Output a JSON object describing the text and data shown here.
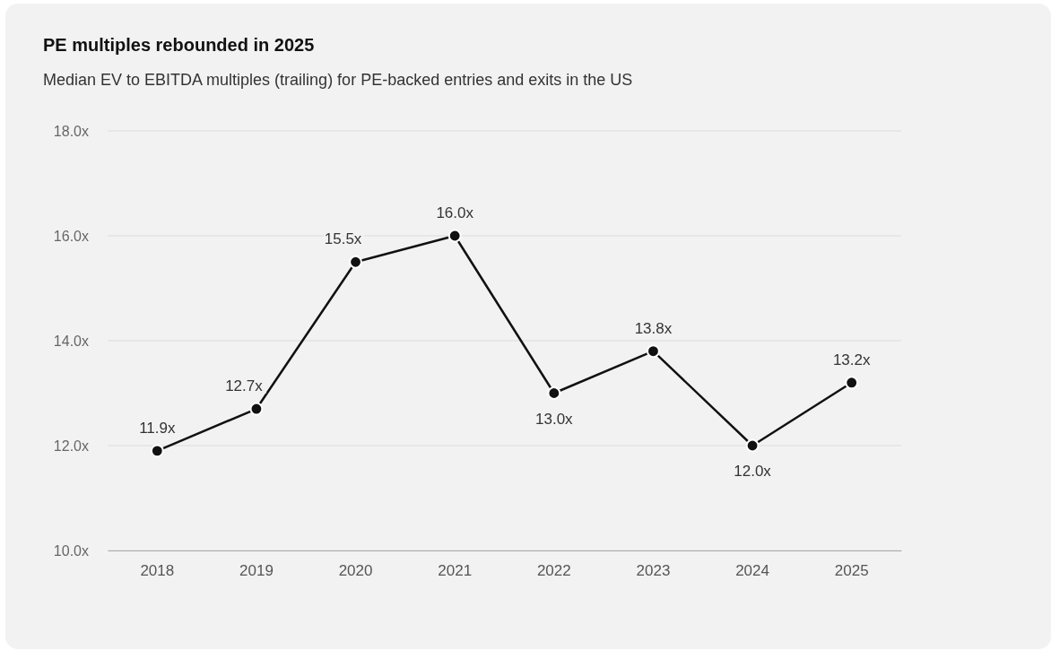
{
  "chart_data": {
    "type": "line",
    "title": "PE multiples rebounded in 2025",
    "subtitle": "Median EV to EBITDA multiples (trailing) for PE-backed entries and exits in the US",
    "categories": [
      "2018",
      "2019",
      "2020",
      "2021",
      "2022",
      "2023",
      "2024",
      "2025"
    ],
    "series": [
      {
        "color": "#111111",
        "values": [
          11.9,
          12.7,
          15.5,
          16.0,
          13.0,
          13.8,
          12.0,
          13.2
        ],
        "value_labels": [
          "11.9x",
          "12.7x",
          "15.5x",
          "16.0x",
          "13.0x",
          "13.8x",
          "12.0x",
          "13.2x"
        ]
      }
    ],
    "ylim": [
      10,
      18
    ],
    "yticks": [
      {
        "value": 10,
        "label": "10.0x"
      },
      {
        "value": 12,
        "label": "12.0x"
      },
      {
        "value": 14,
        "label": "14.0x"
      },
      {
        "value": 16,
        "label": "16.0x"
      },
      {
        "value": 18,
        "label": "18.0x"
      }
    ],
    "grid": "y",
    "marker": "circle",
    "line_style": "solid"
  }
}
